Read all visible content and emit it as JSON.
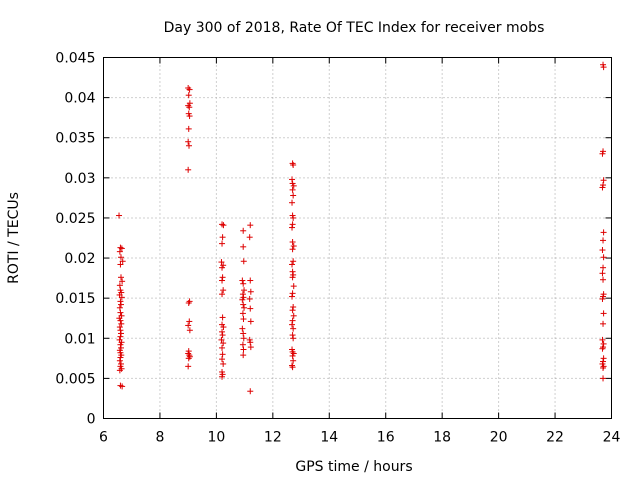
{
  "chart_data": {
    "type": "scatter",
    "title": "Day 300 of 2018, Rate Of TEC Index for receiver mobs",
    "xlabel": "GPS time / hours",
    "ylabel": "ROTI / TECUs",
    "xlim": [
      6,
      24
    ],
    "ylim": [
      0,
      0.045
    ],
    "xticks": [
      "6",
      "8",
      "10",
      "12",
      "14",
      "16",
      "18",
      "20",
      "22",
      "24"
    ],
    "xtick_values": [
      6,
      8,
      10,
      12,
      14,
      16,
      18,
      20,
      22,
      24
    ],
    "yticks": [
      "0",
      "0.005",
      "0.01",
      "0.015",
      "0.02",
      "0.025",
      "0.03",
      "0.035",
      "0.04",
      "0.045"
    ],
    "ytick_values": [
      0,
      0.005,
      0.01,
      0.015,
      0.02,
      0.025,
      0.03,
      0.035,
      0.04,
      0.045
    ],
    "grid": true,
    "marker": "+",
    "color": "#dd0000",
    "series": [
      {
        "name": "mobs",
        "points": [
          [
            6.55,
            0.0253
          ],
          [
            6.6,
            0.0213
          ],
          [
            6.65,
            0.0212
          ],
          [
            6.58,
            0.0208
          ],
          [
            6.62,
            0.0201
          ],
          [
            6.68,
            0.0196
          ],
          [
            6.6,
            0.0192
          ],
          [
            6.62,
            0.0176
          ],
          [
            6.66,
            0.0171
          ],
          [
            6.58,
            0.0166
          ],
          [
            6.6,
            0.016
          ],
          [
            6.63,
            0.0157
          ],
          [
            6.57,
            0.0154
          ],
          [
            6.65,
            0.0151
          ],
          [
            6.6,
            0.0146
          ],
          [
            6.62,
            0.0142
          ],
          [
            6.58,
            0.0138
          ],
          [
            6.6,
            0.0132
          ],
          [
            6.64,
            0.0128
          ],
          [
            6.56,
            0.0125
          ],
          [
            6.6,
            0.0122
          ],
          [
            6.63,
            0.0118
          ],
          [
            6.58,
            0.0114
          ],
          [
            6.6,
            0.011
          ],
          [
            6.62,
            0.0106
          ],
          [
            6.6,
            0.0102
          ],
          [
            6.57,
            0.0098
          ],
          [
            6.64,
            0.0095
          ],
          [
            6.6,
            0.0092
          ],
          [
            6.62,
            0.0088
          ],
          [
            6.58,
            0.0085
          ],
          [
            6.6,
            0.0082
          ],
          [
            6.63,
            0.0079
          ],
          [
            6.6,
            0.0076
          ],
          [
            6.58,
            0.0072
          ],
          [
            6.62,
            0.0068
          ],
          [
            6.6,
            0.0065
          ],
          [
            6.64,
            0.0062
          ],
          [
            6.58,
            0.006
          ],
          [
            6.6,
            0.0041
          ],
          [
            6.66,
            0.004
          ],
          [
            9.0,
            0.0412
          ],
          [
            9.05,
            0.041
          ],
          [
            9.02,
            0.0403
          ],
          [
            9.06,
            0.0393
          ],
          [
            9.0,
            0.039
          ],
          [
            9.04,
            0.0388
          ],
          [
            9.02,
            0.038
          ],
          [
            9.05,
            0.0377
          ],
          [
            9.02,
            0.0361
          ],
          [
            9.0,
            0.0345
          ],
          [
            9.03,
            0.034
          ],
          [
            9.0,
            0.031
          ],
          [
            9.05,
            0.0146
          ],
          [
            9.02,
            0.0144
          ],
          [
            9.04,
            0.0121
          ],
          [
            9.0,
            0.0116
          ],
          [
            9.06,
            0.011
          ],
          [
            9.02,
            0.0084
          ],
          [
            9.0,
            0.0081
          ],
          [
            9.04,
            0.0079
          ],
          [
            9.06,
            0.0077
          ],
          [
            9.02,
            0.0075
          ],
          [
            9.0,
            0.0065
          ],
          [
            10.2,
            0.0242
          ],
          [
            10.25,
            0.0241
          ],
          [
            10.22,
            0.0226
          ],
          [
            10.2,
            0.0218
          ],
          [
            10.18,
            0.0195
          ],
          [
            10.24,
            0.0191
          ],
          [
            10.2,
            0.0188
          ],
          [
            10.22,
            0.0176
          ],
          [
            10.2,
            0.0172
          ],
          [
            10.24,
            0.016
          ],
          [
            10.2,
            0.0155
          ],
          [
            10.22,
            0.0126
          ],
          [
            10.2,
            0.0117
          ],
          [
            10.25,
            0.0114
          ],
          [
            10.2,
            0.0108
          ],
          [
            10.22,
            0.0104
          ],
          [
            10.18,
            0.0098
          ],
          [
            10.24,
            0.0094
          ],
          [
            10.2,
            0.0088
          ],
          [
            10.22,
            0.008
          ],
          [
            10.2,
            0.0074
          ],
          [
            10.24,
            0.0068
          ],
          [
            10.2,
            0.0058
          ],
          [
            10.22,
            0.0055
          ],
          [
            10.2,
            0.0052
          ],
          [
            10.95,
            0.0234
          ],
          [
            10.95,
            0.0214
          ],
          [
            10.97,
            0.0196
          ],
          [
            10.92,
            0.0172
          ],
          [
            10.95,
            0.0168
          ],
          [
            10.98,
            0.016
          ],
          [
            10.94,
            0.0155
          ],
          [
            10.96,
            0.0151
          ],
          [
            10.92,
            0.0148
          ],
          [
            10.95,
            0.0142
          ],
          [
            10.98,
            0.0138
          ],
          [
            10.94,
            0.0131
          ],
          [
            10.96,
            0.0124
          ],
          [
            10.92,
            0.0112
          ],
          [
            10.95,
            0.0106
          ],
          [
            10.97,
            0.01
          ],
          [
            10.94,
            0.0092
          ],
          [
            10.96,
            0.0086
          ],
          [
            10.95,
            0.0079
          ],
          [
            11.2,
            0.0241
          ],
          [
            11.18,
            0.0226
          ],
          [
            11.2,
            0.0172
          ],
          [
            11.22,
            0.0158
          ],
          [
            11.18,
            0.0149
          ],
          [
            11.2,
            0.0137
          ],
          [
            11.22,
            0.0121
          ],
          [
            11.18,
            0.0098
          ],
          [
            11.2,
            0.0095
          ],
          [
            11.22,
            0.0089
          ],
          [
            11.2,
            0.0034
          ],
          [
            12.7,
            0.0318
          ],
          [
            12.72,
            0.0316
          ],
          [
            12.68,
            0.0298
          ],
          [
            12.7,
            0.0293
          ],
          [
            12.74,
            0.029
          ],
          [
            12.7,
            0.0285
          ],
          [
            12.72,
            0.0278
          ],
          [
            12.68,
            0.0269
          ],
          [
            12.7,
            0.0253
          ],
          [
            12.72,
            0.025
          ],
          [
            12.7,
            0.0242
          ],
          [
            12.68,
            0.0238
          ],
          [
            12.7,
            0.022
          ],
          [
            12.74,
            0.0215
          ],
          [
            12.7,
            0.0211
          ],
          [
            12.72,
            0.0196
          ],
          [
            12.68,
            0.0192
          ],
          [
            12.7,
            0.0183
          ],
          [
            12.72,
            0.0179
          ],
          [
            12.7,
            0.0176
          ],
          [
            12.74,
            0.0165
          ],
          [
            12.7,
            0.0156
          ],
          [
            12.68,
            0.0152
          ],
          [
            12.72,
            0.0139
          ],
          [
            12.7,
            0.0135
          ],
          [
            12.74,
            0.0128
          ],
          [
            12.7,
            0.0122
          ],
          [
            12.68,
            0.0117
          ],
          [
            12.72,
            0.0112
          ],
          [
            12.7,
            0.0104
          ],
          [
            12.72,
            0.01
          ],
          [
            12.68,
            0.0086
          ],
          [
            12.7,
            0.0083
          ],
          [
            12.74,
            0.0081
          ],
          [
            12.7,
            0.0078
          ],
          [
            12.72,
            0.0072
          ],
          [
            12.68,
            0.0066
          ],
          [
            12.7,
            0.0064
          ],
          [
            23.7,
            0.0441
          ],
          [
            23.72,
            0.0438
          ],
          [
            23.7,
            0.0333
          ],
          [
            23.68,
            0.033
          ],
          [
            23.72,
            0.0297
          ],
          [
            23.7,
            0.0291
          ],
          [
            23.68,
            0.0288
          ],
          [
            23.72,
            0.0232
          ],
          [
            23.7,
            0.0222
          ],
          [
            23.68,
            0.021
          ],
          [
            23.72,
            0.0201
          ],
          [
            23.7,
            0.0188
          ],
          [
            23.68,
            0.0181
          ],
          [
            23.7,
            0.0173
          ],
          [
            23.72,
            0.0155
          ],
          [
            23.7,
            0.0152
          ],
          [
            23.68,
            0.0149
          ],
          [
            23.72,
            0.0131
          ],
          [
            23.7,
            0.0118
          ],
          [
            23.68,
            0.0098
          ],
          [
            23.72,
            0.0093
          ],
          [
            23.7,
            0.0089
          ],
          [
            23.68,
            0.0087
          ],
          [
            23.72,
            0.0075
          ],
          [
            23.7,
            0.0071
          ],
          [
            23.68,
            0.0068
          ],
          [
            23.72,
            0.0065
          ],
          [
            23.7,
            0.0063
          ],
          [
            23.7,
            0.005
          ]
        ]
      }
    ]
  }
}
